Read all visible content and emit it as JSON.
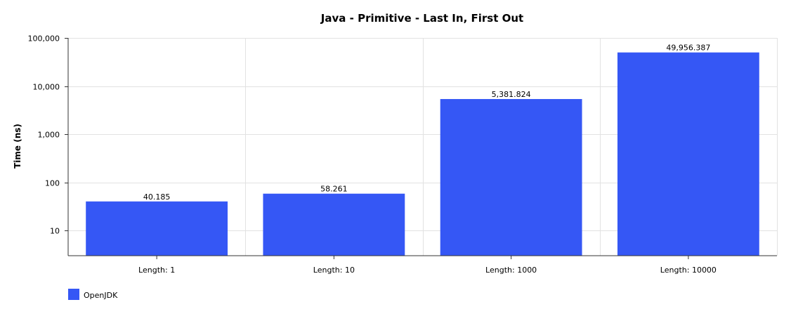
{
  "chart_data": {
    "type": "bar",
    "title": "Java - Primitive - Last In, First Out",
    "xlabel": "",
    "ylabel": "Time (ns)",
    "yscale": "log",
    "ylim": [
      3,
      100000
    ],
    "yticks": [
      10,
      100,
      1000,
      10000,
      100000
    ],
    "ytick_labels": [
      "10",
      "100",
      "1,000",
      "10,000",
      "100,000"
    ],
    "categories": [
      "Length: 1",
      "Length: 10",
      "Length: 1000",
      "Length: 10000"
    ],
    "series": [
      {
        "name": "OpenJDK",
        "color": "#3557f5",
        "values": [
          40.185,
          58.261,
          5381.824,
          49956.387
        ],
        "labels": [
          "40.185",
          "58.261",
          "5,381.824",
          "49,956.387"
        ]
      }
    ],
    "grid": true,
    "legend": "bottom-left"
  }
}
